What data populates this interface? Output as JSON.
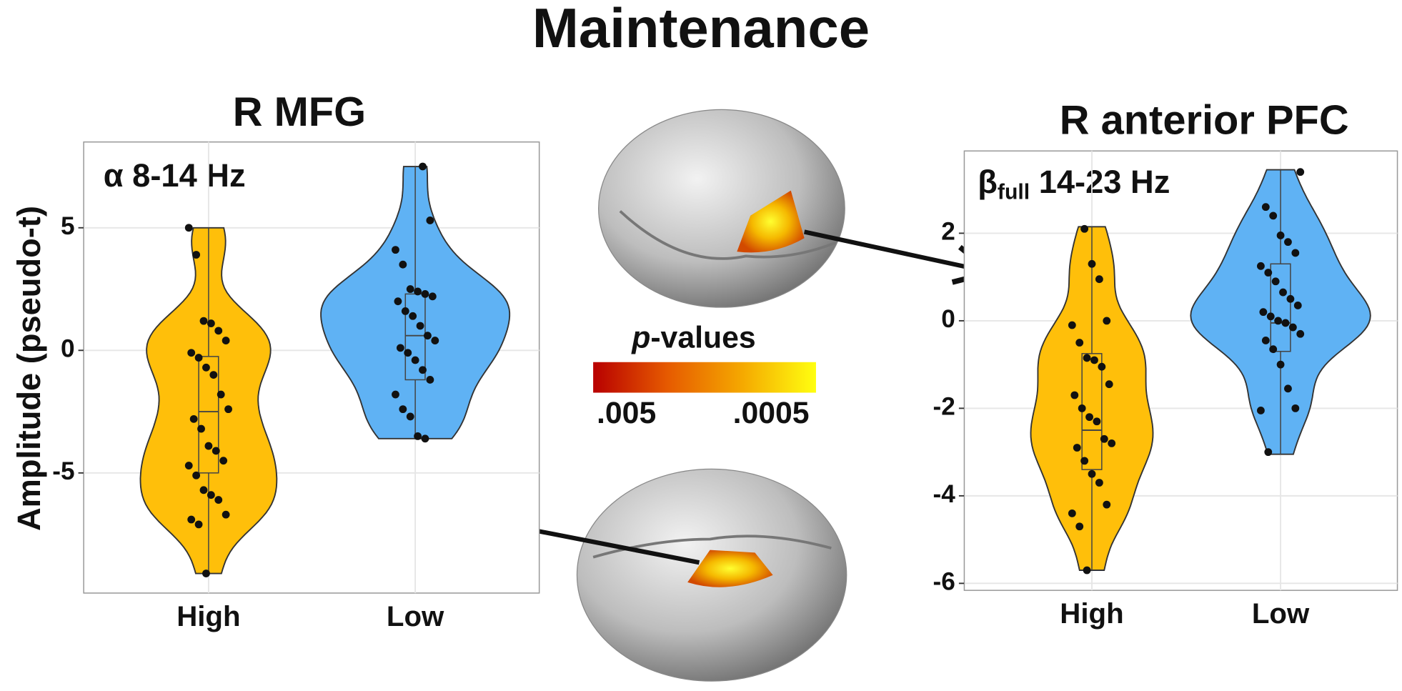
{
  "title": "Maintenance",
  "colorbar": {
    "label_italic": "p",
    "label_rest": "-values",
    "tick_left": ".005",
    "tick_right": ".0005",
    "colors": [
      "#b80000",
      "#e65a00",
      "#f5a800",
      "#ffff10"
    ]
  },
  "chart_data": [
    {
      "type": "violin",
      "title": "R MFG",
      "annotation": "α 8-14 Hz",
      "ylabel": "Amplitude (pseudo-t)",
      "categories": [
        "High",
        "Low"
      ],
      "ylim": [
        -9.9,
        8.5
      ],
      "yticks": [
        -5,
        0,
        5
      ],
      "grid": true,
      "series": [
        {
          "color": "#ffbf0a",
          "values": [
            5.0,
            3.9,
            1.2,
            1.1,
            0.8,
            0.4,
            -0.1,
            -0.3,
            -0.7,
            -1.0,
            -1.8,
            -2.4,
            -2.8,
            -3.2,
            -3.9,
            -4.1,
            -4.5,
            -4.7,
            -5.1,
            -5.7,
            -5.9,
            -6.1,
            -6.7,
            -6.9,
            -7.1,
            -9.1
          ],
          "q1": -5.0,
          "median": -2.5,
          "q3": -0.25,
          "whisker_low": -9.1,
          "whisker_high": 5.0
        },
        {
          "color": "#5fb2f4",
          "values": [
            7.5,
            5.3,
            4.1,
            3.5,
            2.5,
            2.4,
            2.3,
            2.2,
            2.0,
            1.6,
            1.4,
            1.0,
            0.6,
            0.4,
            0.1,
            -0.1,
            -0.4,
            -0.8,
            -1.2,
            -1.8,
            -2.4,
            -2.7,
            -3.5,
            -3.6
          ],
          "q1": -1.2,
          "median": 0.6,
          "q3": 2.3,
          "whisker_low": -3.6,
          "whisker_high": 7.5
        }
      ]
    },
    {
      "type": "violin",
      "title": "R anterior PFC",
      "annotation_parts": [
        "β",
        "full",
        " 14-23 Hz"
      ],
      "categories": [
        "High",
        "Low"
      ],
      "ylim": [
        -6.16,
        3.88
      ],
      "yticks": [
        -6,
        -4,
        -2,
        0,
        2
      ],
      "grid": true,
      "series": [
        {
          "color": "#ffbf0a",
          "values": [
            2.1,
            1.3,
            0.95,
            0,
            -0.1,
            -0.5,
            -0.85,
            -0.9,
            -1.05,
            -1.45,
            -1.7,
            -2.0,
            -2.2,
            -2.3,
            -2.7,
            -2.8,
            -2.9,
            -3.2,
            -3.5,
            -3.7,
            -4.2,
            -4.4,
            -4.7,
            -5.7
          ],
          "q1": -3.4,
          "median": -2.5,
          "q3": -0.75,
          "whisker_low": -5.7,
          "whisker_high": 2.15
        },
        {
          "color": "#5fb2f4",
          "values": [
            3.4,
            2.6,
            2.4,
            1.95,
            1.8,
            1.55,
            1.25,
            1.1,
            0.9,
            0.65,
            0.5,
            0.35,
            0.2,
            0.1,
            0,
            -0.05,
            -0.15,
            -0.3,
            -0.45,
            -0.65,
            -1.0,
            -1.55,
            -2.0,
            -2.05,
            -3.0
          ],
          "q1": -0.7,
          "median": -0.05,
          "q3": 1.3,
          "whisker_low": -3.05,
          "whisker_high": 3.45
        }
      ]
    }
  ]
}
